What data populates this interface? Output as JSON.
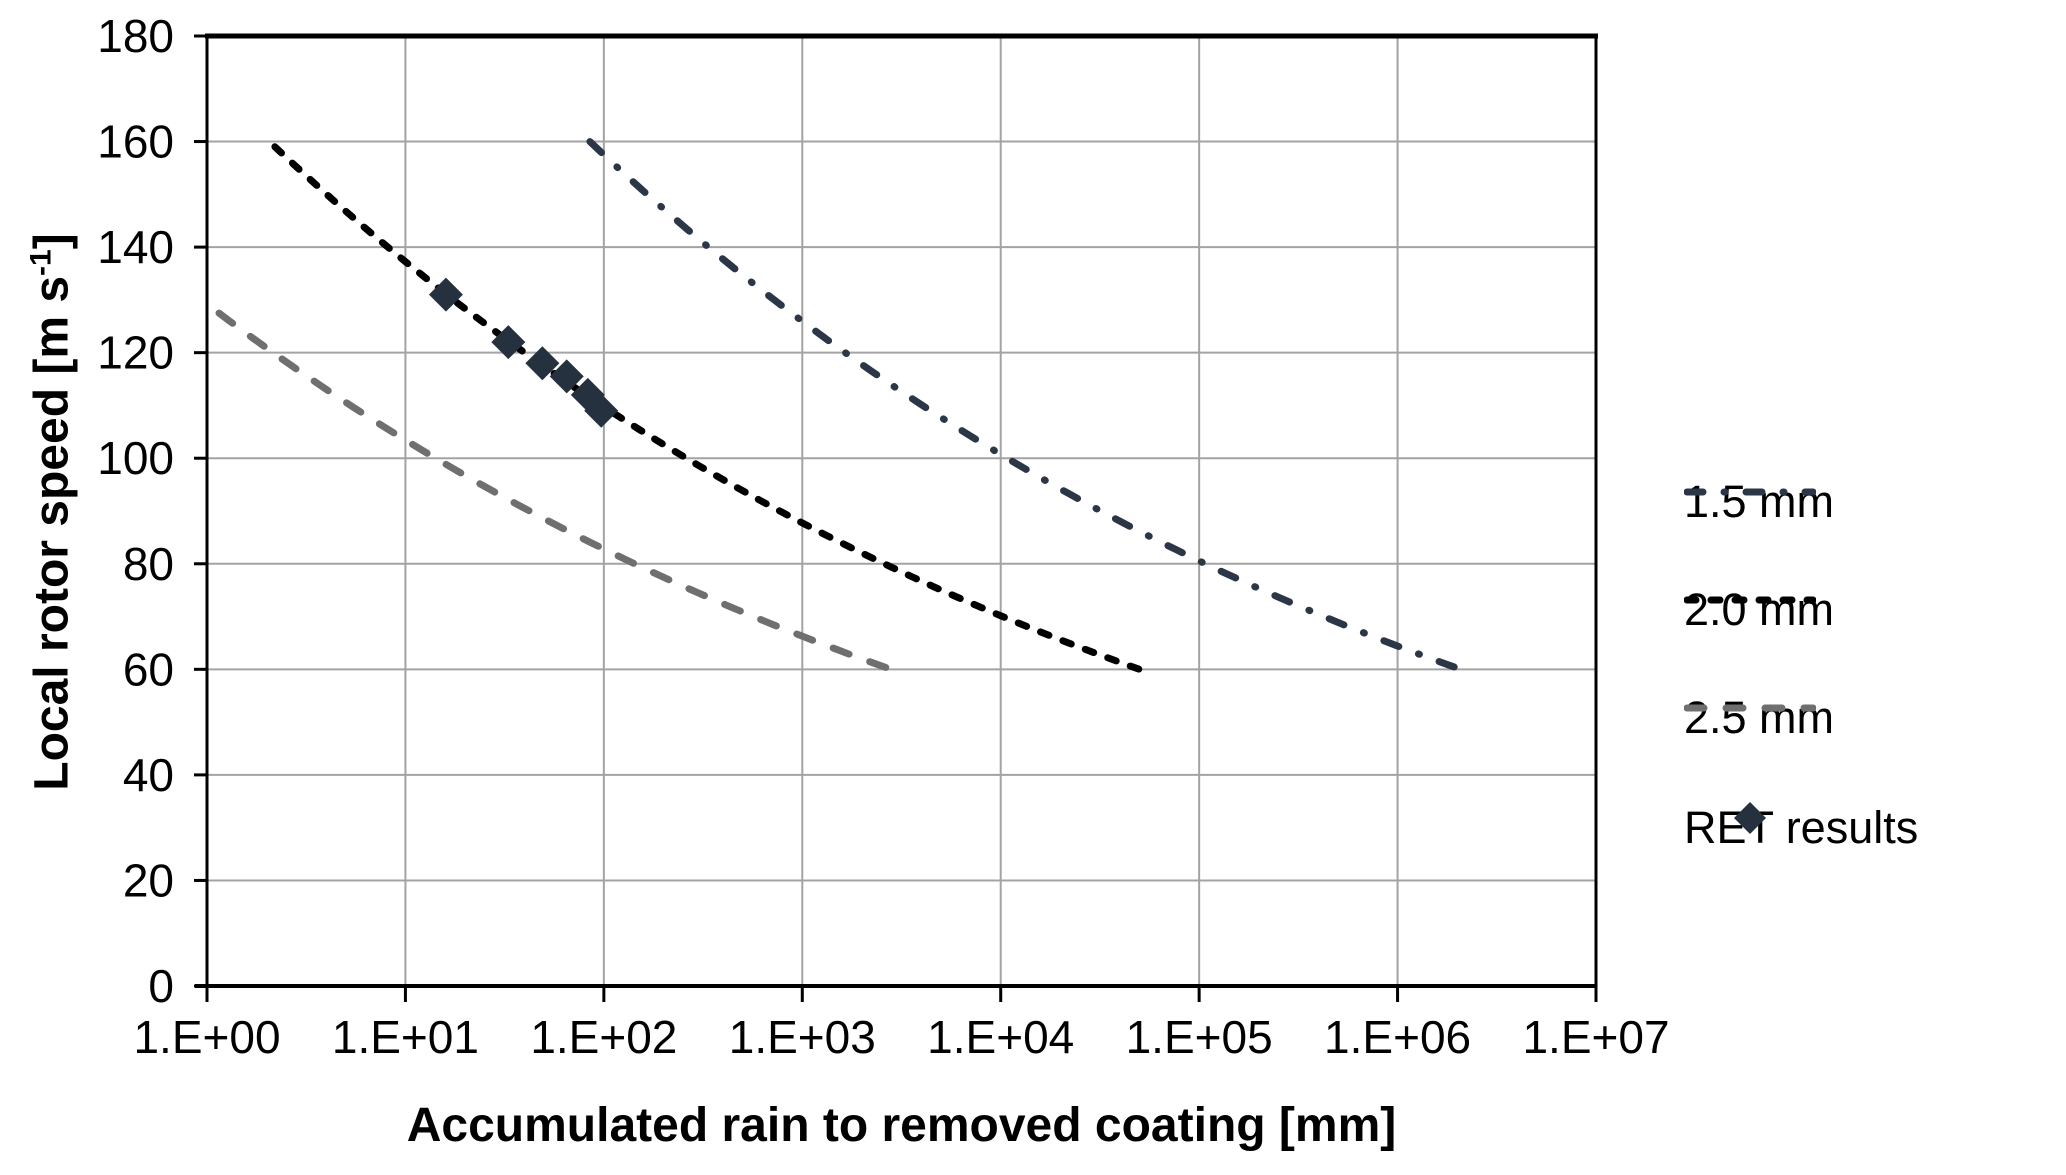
{
  "chart_data": {
    "type": "line",
    "title": "",
    "xlabel": "Accumulated rain to removed coating [mm]",
    "ylabel": "Local rotor speed [m s⁻¹]",
    "ylabel_parts": [
      "Local rotor speed [m s",
      "-1",
      "]"
    ],
    "x_axis": {
      "scale": "log",
      "min_exponent": 0,
      "max_exponent": 7,
      "tick_labels": [
        "1.E+00",
        "1.E+01",
        "1.E+02",
        "1.E+03",
        "1.E+04",
        "1.E+05",
        "1.E+06",
        "1.E+07"
      ],
      "grid": true
    },
    "y_axis": {
      "min": 0,
      "max": 180,
      "step": 20,
      "tick_labels": [
        "0",
        "20",
        "40",
        "60",
        "80",
        "100",
        "120",
        "140",
        "160",
        "180"
      ],
      "grid": true
    },
    "series": [
      {
        "name": "1.5 mm",
        "kind": "line",
        "style": "dashdot",
        "color": "#2b3647",
        "loglog_endpoints": [
          [
            85,
            160
          ],
          [
            2080000,
            60
          ]
        ]
      },
      {
        "name": "2.0 mm",
        "kind": "line",
        "style": "dash",
        "color": "#000000",
        "loglog_endpoints": [
          [
            2.2,
            159
          ],
          [
            50000,
            60
          ]
        ]
      },
      {
        "name": "2.5 mm",
        "kind": "line",
        "style": "longdash",
        "color": "#6f6f6f",
        "loglog_endpoints": [
          [
            1.15,
            127.5
          ],
          [
            2800,
            60
          ]
        ]
      },
      {
        "name": "RET results",
        "kind": "scatter",
        "marker": "diamond",
        "color": "#263140",
        "points": [
          [
            16,
            131
          ],
          [
            33,
            122
          ],
          [
            49,
            118
          ],
          [
            65,
            115.5
          ],
          [
            83,
            112
          ],
          [
            97,
            109
          ]
        ]
      }
    ],
    "legend_position": "right",
    "grid_color": "#a3a3a3",
    "axis_color": "#000000"
  }
}
